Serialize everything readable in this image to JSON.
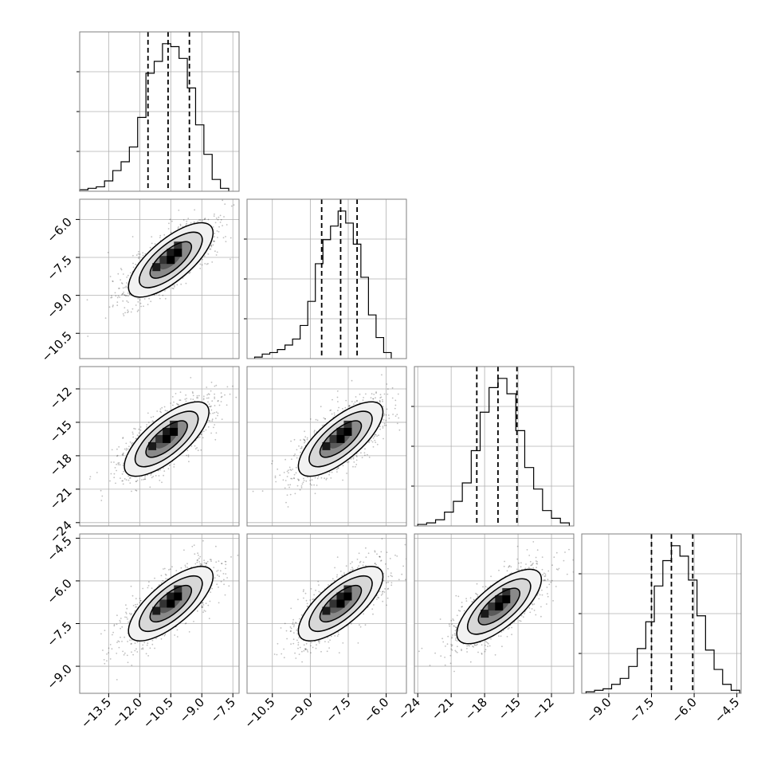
{
  "chart_data": {
    "type": "corner",
    "grid": true,
    "parameters": [
      {
        "ticks": [
          -13.5,
          -12.0,
          -10.5,
          -9.0,
          -7.5
        ],
        "tick_labels": [
          "−13.5",
          "−12.0",
          "−10.5",
          "−9.0",
          "−7.5"
        ],
        "range": [
          -14.9,
          -7.2
        ],
        "quantiles": [
          -11.6,
          -10.63,
          -9.6
        ],
        "hist_bins": [
          -14.9,
          -14.5,
          -14.1,
          -13.7,
          -13.3,
          -12.9,
          -12.5,
          -12.1,
          -11.7,
          -11.3,
          -10.9,
          -10.5,
          -10.1,
          -9.7,
          -9.3,
          -8.9,
          -8.5,
          -8.1,
          -7.7
        ],
        "hist_counts": [
          1,
          2,
          3,
          7,
          14,
          20,
          30,
          50,
          80,
          88,
          100,
          98,
          90,
          70,
          45,
          25,
          8,
          2
        ]
      },
      {
        "ticks": [
          -10.5,
          -9.0,
          -7.5,
          -6.0
        ],
        "tick_labels": [
          "−10.5",
          "−9.0",
          "−7.5",
          "−6.0"
        ],
        "range": [
          -11.5,
          -5.2
        ],
        "quantiles": [
          -8.55,
          -7.8,
          -7.15
        ],
        "hist_bins": [
          -11.2,
          -10.9,
          -10.6,
          -10.3,
          -10.0,
          -9.7,
          -9.4,
          -9.1,
          -8.8,
          -8.5,
          -8.2,
          -7.9,
          -7.6,
          -7.3,
          -7.0,
          -6.7,
          -6.4,
          -6.1,
          -5.8
        ],
        "hist_counts": [
          1,
          3,
          4,
          6,
          9,
          13,
          22,
          38,
          63,
          79,
          88,
          98,
          90,
          76,
          54,
          29,
          14,
          4
        ]
      },
      {
        "ticks": [
          -24,
          -21,
          -18,
          -15,
          -12
        ],
        "tick_labels": [
          "−24",
          "−21",
          "−18",
          "−15",
          "−12"
        ],
        "range": [
          -24.3,
          -10.0
        ],
        "quantiles": [
          -18.7,
          -16.8,
          -15.1
        ],
        "hist_bins": [
          -24.0,
          -23.2,
          -22.4,
          -21.6,
          -20.8,
          -20.0,
          -19.2,
          -18.4,
          -17.6,
          -16.8,
          -16.0,
          -15.2,
          -14.4,
          -13.6,
          -12.8,
          -12.0,
          -11.2,
          -10.4
        ],
        "hist_counts": [
          1,
          2,
          4,
          9,
          16,
          28,
          49,
          74,
          90,
          96,
          86,
          62,
          38,
          24,
          10,
          5,
          2
        ]
      },
      {
        "ticks": [
          -9.0,
          -7.5,
          -6.0,
          -4.5
        ],
        "tick_labels": [
          "−9.0",
          "−7.5",
          "−6.0",
          "−4.5"
        ],
        "range": [
          -9.95,
          -4.35
        ],
        "quantiles": [
          -7.5,
          -6.8,
          -6.05
        ],
        "hist_bins": [
          -9.8,
          -9.5,
          -9.2,
          -8.9,
          -8.6,
          -8.3,
          -8.0,
          -7.7,
          -7.4,
          -7.1,
          -6.8,
          -6.5,
          -6.2,
          -5.9,
          -5.6,
          -5.3,
          -5.0,
          -4.7,
          -4.4
        ],
        "hist_counts": [
          1,
          2,
          3,
          6,
          10,
          18,
          30,
          48,
          72,
          89,
          99,
          92,
          76,
          52,
          29,
          16,
          6,
          2
        ]
      }
    ],
    "pairs": [
      {
        "x": 0,
        "y": 1,
        "center": [
          -10.5,
          -7.6
        ],
        "rho": 0.88
      },
      {
        "x": 0,
        "y": 2,
        "center": [
          -10.7,
          -16.5
        ],
        "rho": 0.87
      },
      {
        "x": 1,
        "y": 2,
        "center": [
          -7.8,
          -16.5
        ],
        "rho": 0.86
      },
      {
        "x": 0,
        "y": 3,
        "center": [
          -10.5,
          -6.8
        ],
        "rho": 0.88
      },
      {
        "x": 1,
        "y": 3,
        "center": [
          -7.8,
          -6.8
        ],
        "rho": 0.87
      },
      {
        "x": 2,
        "y": 3,
        "center": [
          -16.7,
          -6.9
        ],
        "rho": 0.88
      }
    ]
  }
}
